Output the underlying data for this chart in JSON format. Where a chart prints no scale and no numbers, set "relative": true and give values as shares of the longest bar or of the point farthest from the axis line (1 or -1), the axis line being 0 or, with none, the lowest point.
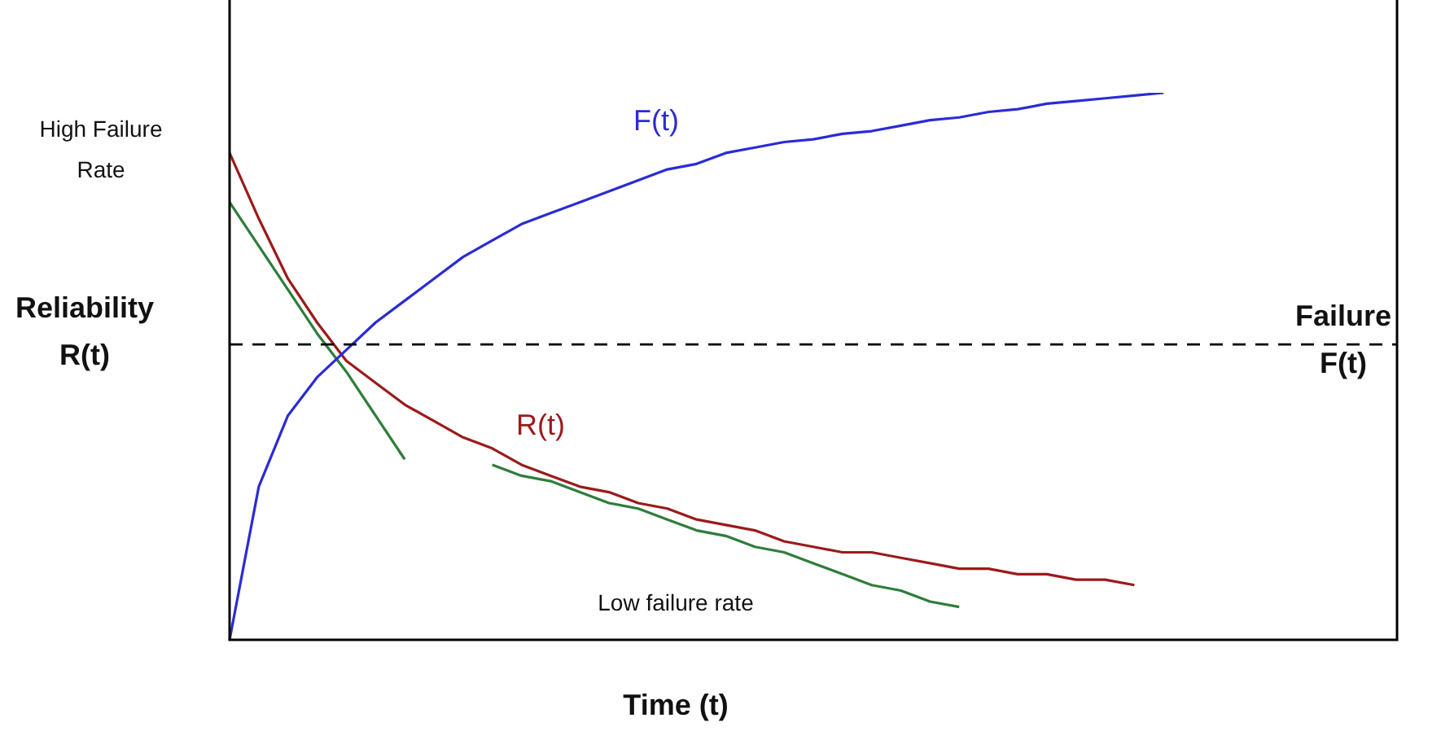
{
  "chart_data": {
    "type": "line",
    "relative": true,
    "xlabel": "Time (t)",
    "ylabel": "Reliability R(t)",
    "y2label": "Failure F(t)",
    "legend": false,
    "marker": "none",
    "line_style": "solid",
    "categories": [
      null,
      null,
      null,
      null,
      null,
      null,
      null,
      null,
      null,
      null,
      null,
      null,
      null,
      null,
      null,
      null,
      null,
      null,
      null,
      null,
      null,
      null,
      null,
      null,
      null,
      null,
      null,
      null,
      null,
      null,
      null,
      null,
      null,
      null,
      null,
      null,
      null,
      null,
      null,
      null,
      null
    ],
    "series": [
      {
        "name": "F(t)",
        "color": "#2b2bd6",
        "values": [
          0,
          0.28,
          0.41,
          0.48,
          0.53,
          0.58,
          0.62,
          0.66,
          0.7,
          0.73,
          0.76,
          0.78,
          0.8,
          0.82,
          0.84,
          0.86,
          0.87,
          0.89,
          0.9,
          0.91,
          0.915,
          0.925,
          0.93,
          0.94,
          0.95,
          0.955,
          0.965,
          0.97,
          0.98,
          0.985,
          0.99,
          0.995,
          1,
          null,
          null,
          null,
          null,
          null,
          null,
          null,
          null
        ]
      },
      {
        "name": "R(t)",
        "color": "#9c1a1a",
        "values": [
          0.89,
          0.77,
          0.66,
          0.58,
          0.51,
          0.47,
          0.43,
          0.4,
          0.37,
          0.35,
          0.32,
          0.3,
          0.28,
          0.27,
          0.25,
          0.24,
          0.22,
          0.21,
          0.2,
          0.18,
          0.17,
          0.16,
          0.16,
          0.15,
          0.14,
          0.13,
          0.13,
          0.12,
          0.12,
          0.11,
          0.11,
          0.1,
          null,
          null,
          null,
          null,
          null,
          null,
          null,
          null,
          null
        ]
      },
      {
        "color": "#2e7d3a",
        "values": [
          0.8,
          0.72,
          0.64,
          0.56,
          0.49,
          0.41,
          0.33,
          null,
          null,
          null,
          null,
          null,
          null,
          null,
          null,
          null,
          null,
          null,
          null,
          null,
          null,
          null,
          null,
          null,
          null,
          null,
          null,
          null,
          null,
          null,
          null,
          null,
          null,
          null,
          null,
          null,
          null,
          null,
          null,
          null,
          null
        ]
      },
      {
        "color": "#2e7d3a",
        "values": [
          null,
          null,
          null,
          null,
          null,
          null,
          null,
          null,
          null,
          0.32,
          0.3,
          0.29,
          0.27,
          0.25,
          0.24,
          0.22,
          0.2,
          0.19,
          0.17,
          0.16,
          0.14,
          0.12,
          0.1,
          0.09,
          0.07,
          0.06,
          null,
          null,
          null,
          null,
          null,
          null,
          null,
          null,
          null,
          null,
          null,
          null,
          null,
          null,
          null
        ]
      }
    ],
    "ref_lines": [
      {
        "axis": "y",
        "value": 0.54,
        "color": "#000000",
        "line_style": "dashed"
      }
    ],
    "annotations": [
      "High Failure Rate",
      "Low failure rate"
    ]
  }
}
